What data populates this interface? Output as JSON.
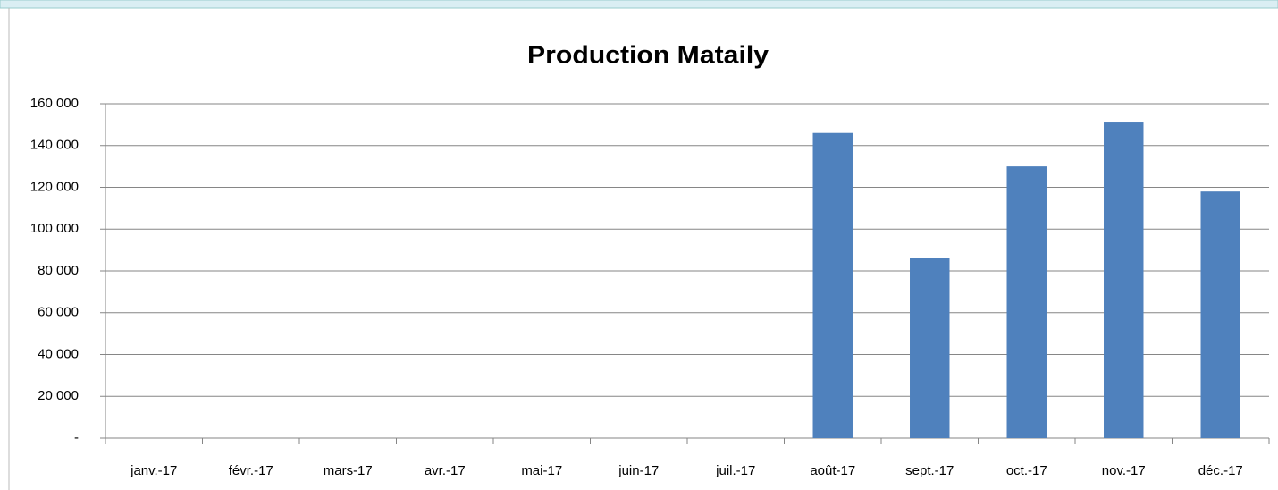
{
  "chart_data": {
    "type": "bar",
    "title": "Production Mataily",
    "categories": [
      "janv.-17",
      "févr.-17",
      "mars-17",
      "avr.-17",
      "mai-17",
      "juin-17",
      "juil.-17",
      "août-17",
      "sept.-17",
      "oct.-17",
      "nov.-17",
      "déc.-17"
    ],
    "values": [
      null,
      null,
      null,
      null,
      null,
      null,
      null,
      146000,
      86000,
      130000,
      151000,
      118000
    ],
    "color": "#4f81bd",
    "ylim": [
      0,
      160000
    ],
    "yticks": [
      {
        "value": 0,
        "label": "-"
      },
      {
        "value": 20000,
        "label": "20 000"
      },
      {
        "value": 40000,
        "label": "40 000"
      },
      {
        "value": 60000,
        "label": "60 000"
      },
      {
        "value": 80000,
        "label": "80 000"
      },
      {
        "value": 100000,
        "label": "100 000"
      },
      {
        "value": 120000,
        "label": "120 000"
      },
      {
        "value": 140000,
        "label": "140 000"
      },
      {
        "value": 160000,
        "label": "160 000"
      }
    ],
    "grid": true
  }
}
